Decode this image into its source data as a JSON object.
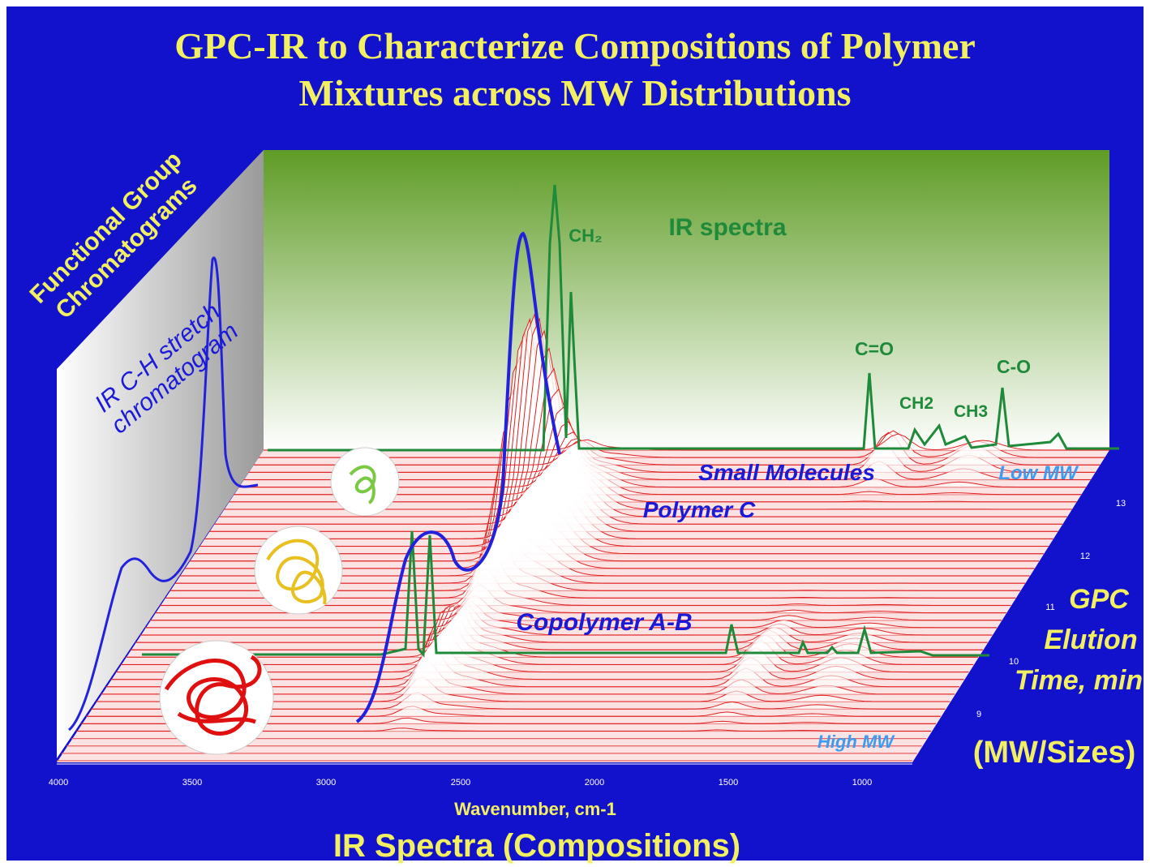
{
  "title": [
    "GPC-IR to Characterize Compositions of Polymer",
    "Mixtures across MW Distributions"
  ],
  "left_wall": {
    "title": [
      "Functional Group",
      "Chromatograms"
    ],
    "trace_label": [
      "IR C-H stretch",
      "chromatogram"
    ]
  },
  "back_wall": {
    "label": "IR spectra",
    "peaks": [
      "CH₂",
      "C=O",
      "CH2",
      "CH3",
      "C-O"
    ]
  },
  "floor_labels": {
    "small": "Small Molecules",
    "polymer": "Polymer C",
    "copolymer": "Copolymer A-B",
    "low": "Low MW",
    "high": "High MW"
  },
  "x_axis": {
    "ticks": [
      4000,
      3500,
      3000,
      2500,
      2000,
      1500,
      1000
    ],
    "title": "Wavenumber, cm-1",
    "caption": "IR Spectra  (Compositions)"
  },
  "depth_axis": {
    "ticks": [
      13,
      12,
      11,
      10,
      9
    ],
    "title": [
      "GPC",
      "Elution",
      "Time, min"
    ],
    "caption": "(MW/Sizes)"
  }
}
